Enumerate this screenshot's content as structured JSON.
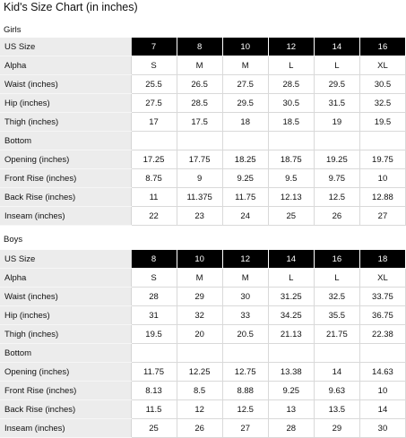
{
  "title": "Kid's Size Chart  (in inches)",
  "girls": {
    "section_label": "Girls",
    "header_label": "US Size",
    "sizes": [
      "7",
      "8",
      "10",
      "12",
      "14",
      "16"
    ],
    "rows": [
      {
        "label": "Alpha",
        "values": [
          "S",
          "M",
          "M",
          "L",
          "L",
          "XL"
        ]
      },
      {
        "label": "Waist (inches)",
        "values": [
          "25.5",
          "26.5",
          "27.5",
          "28.5",
          "29.5",
          "30.5"
        ]
      },
      {
        "label": "Hip (inches)",
        "values": [
          "27.5",
          "28.5",
          "29.5",
          "30.5",
          "31.5",
          "32.5"
        ]
      },
      {
        "label": "Thigh (inches)",
        "values": [
          "17",
          "17.5",
          "18",
          "18.5",
          "19",
          "19.5"
        ]
      },
      {
        "label": "Bottom",
        "values": [
          "",
          "",
          "",
          "",
          "",
          ""
        ]
      },
      {
        "label": "Opening (inches)",
        "values": [
          "17.25",
          "17.75",
          "18.25",
          "18.75",
          "19.25",
          "19.75"
        ]
      },
      {
        "label": "Front Rise (inches)",
        "values": [
          "8.75",
          "9",
          "9.25",
          "9.5",
          "9.75",
          "10"
        ]
      },
      {
        "label": "Back Rise (inches)",
        "values": [
          "11",
          "11.375",
          "11.75",
          "12.13",
          "12.5",
          "12.88"
        ]
      },
      {
        "label": "Inseam (inches)",
        "values": [
          "22",
          "23",
          "24",
          "25",
          "26",
          "27"
        ]
      }
    ]
  },
  "boys": {
    "section_label": "Boys",
    "header_label": "US Size",
    "sizes": [
      "8",
      "10",
      "12",
      "14",
      "16",
      "18"
    ],
    "rows": [
      {
        "label": "Alpha",
        "values": [
          "S",
          "M",
          "M",
          "L",
          "L",
          "XL"
        ]
      },
      {
        "label": "Waist (inches)",
        "values": [
          "28",
          "29",
          "30",
          "31.25",
          "32.5",
          "33.75"
        ]
      },
      {
        "label": "Hip (inches)",
        "values": [
          "31",
          "32",
          "33",
          "34.25",
          "35.5",
          "36.75"
        ]
      },
      {
        "label": "Thigh (inches)",
        "values": [
          "19.5",
          "20",
          "20.5",
          "21.13",
          "21.75",
          "22.38"
        ]
      },
      {
        "label": "Bottom",
        "values": [
          "",
          "",
          "",
          "",
          "",
          ""
        ]
      },
      {
        "label": "Opening (inches)",
        "values": [
          "11.75",
          "12.25",
          "12.75",
          "13.38",
          "14",
          "14.63"
        ]
      },
      {
        "label": "Front Rise (inches)",
        "values": [
          "8.13",
          "8.5",
          "8.88",
          "9.25",
          "9.63",
          "10"
        ]
      },
      {
        "label": "Back Rise (inches)",
        "values": [
          "11.5",
          "12",
          "12.5",
          "13",
          "13.5",
          "14"
        ]
      },
      {
        "label": "Inseam (inches)",
        "values": [
          "25",
          "26",
          "27",
          "28",
          "29",
          "30"
        ]
      }
    ]
  }
}
